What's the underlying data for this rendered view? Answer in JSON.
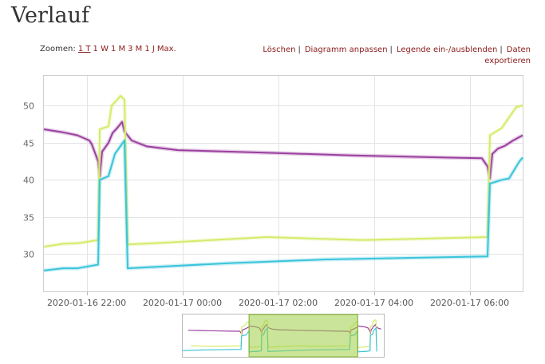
{
  "page": {
    "title": "Verlauf"
  },
  "zoom": {
    "label": "Zoomen:",
    "options": [
      "1 T",
      "1 W",
      "1 M",
      "3 M",
      "1 J",
      "Max."
    ],
    "active": "1 T"
  },
  "actions": [
    "Löschen",
    "Diagramm anpassen",
    "Legende ein-/ausblenden",
    "Daten exportieren"
  ],
  "colors": {
    "purple": "#9b3fa0",
    "yellow": "#d4ec6a",
    "cyan": "#3bc4da",
    "navigator_fill": "#9fcf45",
    "link": "#8b1a1a"
  },
  "chart_data": {
    "type": "line",
    "title": "",
    "xlabel": "",
    "ylabel": "",
    "ylim": [
      25,
      54
    ],
    "yticks": [
      30,
      35,
      40,
      45,
      50
    ],
    "x_range": [
      "2020-01-16 21:06",
      "2020-01-17 07:06"
    ],
    "xtick_labels": [
      {
        "x": "2020-01-16 22:00",
        "label": "2020-01-16 22:00"
      },
      {
        "x": "2020-01-17 00:00",
        "label": "2020-01-17 00:00"
      },
      {
        "x": "2020-01-17 02:00",
        "label": "2020-01-17 02:00"
      },
      {
        "x": "2020-01-17 04:00",
        "label": "2020-01-17 04:00"
      },
      {
        "x": "2020-01-17 06:00",
        "label": "2020-01-17 06:00"
      }
    ],
    "grid": true,
    "series": [
      {
        "color": "#9b3fa0",
        "points": [
          [
            "2020-01-16 21:06",
            46.8
          ],
          [
            "2020-01-16 21:30",
            46.4
          ],
          [
            "2020-01-16 21:48",
            46.0
          ],
          [
            "2020-01-16 22:03",
            45.3
          ],
          [
            "2020-01-16 22:06",
            44.8
          ],
          [
            "2020-01-16 22:14",
            42.5
          ],
          [
            "2020-01-16 22:16",
            40.5
          ],
          [
            "2020-01-16 22:19",
            43.8
          ],
          [
            "2020-01-16 22:27",
            45.0
          ],
          [
            "2020-01-16 22:32",
            46.3
          ],
          [
            "2020-01-16 22:38",
            47.0
          ],
          [
            "2020-01-16 22:44",
            47.8
          ],
          [
            "2020-01-16 22:47",
            46.5
          ],
          [
            "2020-01-16 22:56",
            45.3
          ],
          [
            "2020-01-16 23:15",
            44.5
          ],
          [
            "2020-01-16 23:54",
            44.0
          ],
          [
            "2020-01-17 01:30",
            43.7
          ],
          [
            "2020-01-17 03:30",
            43.3
          ],
          [
            "2020-01-17 05:30",
            43.0
          ],
          [
            "2020-01-17 06:15",
            42.9
          ],
          [
            "2020-01-17 06:22",
            41.8
          ],
          [
            "2020-01-17 06:25",
            40.2
          ],
          [
            "2020-01-17 06:28",
            43.5
          ],
          [
            "2020-01-17 06:35",
            44.2
          ],
          [
            "2020-01-17 06:44",
            44.6
          ],
          [
            "2020-01-17 06:54",
            45.3
          ],
          [
            "2020-01-17 07:06",
            46.0
          ]
        ]
      },
      {
        "color": "#d4ec6a",
        "points": [
          [
            "2020-01-16 21:06",
            31.0
          ],
          [
            "2020-01-16 21:30",
            31.4
          ],
          [
            "2020-01-16 21:50",
            31.5
          ],
          [
            "2020-01-16 22:14",
            31.9
          ],
          [
            "2020-01-16 22:16",
            46.8
          ],
          [
            "2020-01-16 22:27",
            47.2
          ],
          [
            "2020-01-16 22:31",
            50.0
          ],
          [
            "2020-01-16 22:38",
            50.8
          ],
          [
            "2020-01-16 22:42",
            51.3
          ],
          [
            "2020-01-16 22:47",
            50.8
          ],
          [
            "2020-01-16 22:51",
            31.3
          ],
          [
            "2020-01-16 23:45",
            31.6
          ],
          [
            "2020-01-17 01:45",
            32.3
          ],
          [
            "2020-01-17 03:45",
            31.9
          ],
          [
            "2020-01-17 06:22",
            32.3
          ],
          [
            "2020-01-17 06:25",
            46.0
          ],
          [
            "2020-01-17 06:40",
            47.0
          ],
          [
            "2020-01-17 06:58",
            49.8
          ],
          [
            "2020-01-17 07:06",
            50.0
          ]
        ]
      },
      {
        "color": "#3bc4da",
        "points": [
          [
            "2020-01-16 21:06",
            27.8
          ],
          [
            "2020-01-16 21:30",
            28.1
          ],
          [
            "2020-01-16 21:48",
            28.1
          ],
          [
            "2020-01-16 22:14",
            28.6
          ],
          [
            "2020-01-16 22:16",
            40.0
          ],
          [
            "2020-01-16 22:27",
            40.5
          ],
          [
            "2020-01-16 22:35",
            43.5
          ],
          [
            "2020-01-16 22:47",
            45.3
          ],
          [
            "2020-01-16 22:51",
            28.1
          ],
          [
            "2020-01-17 01:00",
            28.8
          ],
          [
            "2020-01-17 03:00",
            29.3
          ],
          [
            "2020-01-17 06:22",
            29.7
          ],
          [
            "2020-01-17 06:25",
            39.5
          ],
          [
            "2020-01-17 06:40",
            40.0
          ],
          [
            "2020-01-17 06:49",
            40.2
          ],
          [
            "2020-01-17 07:02",
            42.5
          ],
          [
            "2020-01-17 07:06",
            43.0
          ]
        ]
      }
    ],
    "navigator": {
      "range": [
        "2020-01-16 15:00",
        "2020-01-17 09:30"
      ],
      "selected": [
        "2020-01-16 21:06",
        "2020-01-17 07:06"
      ]
    }
  }
}
